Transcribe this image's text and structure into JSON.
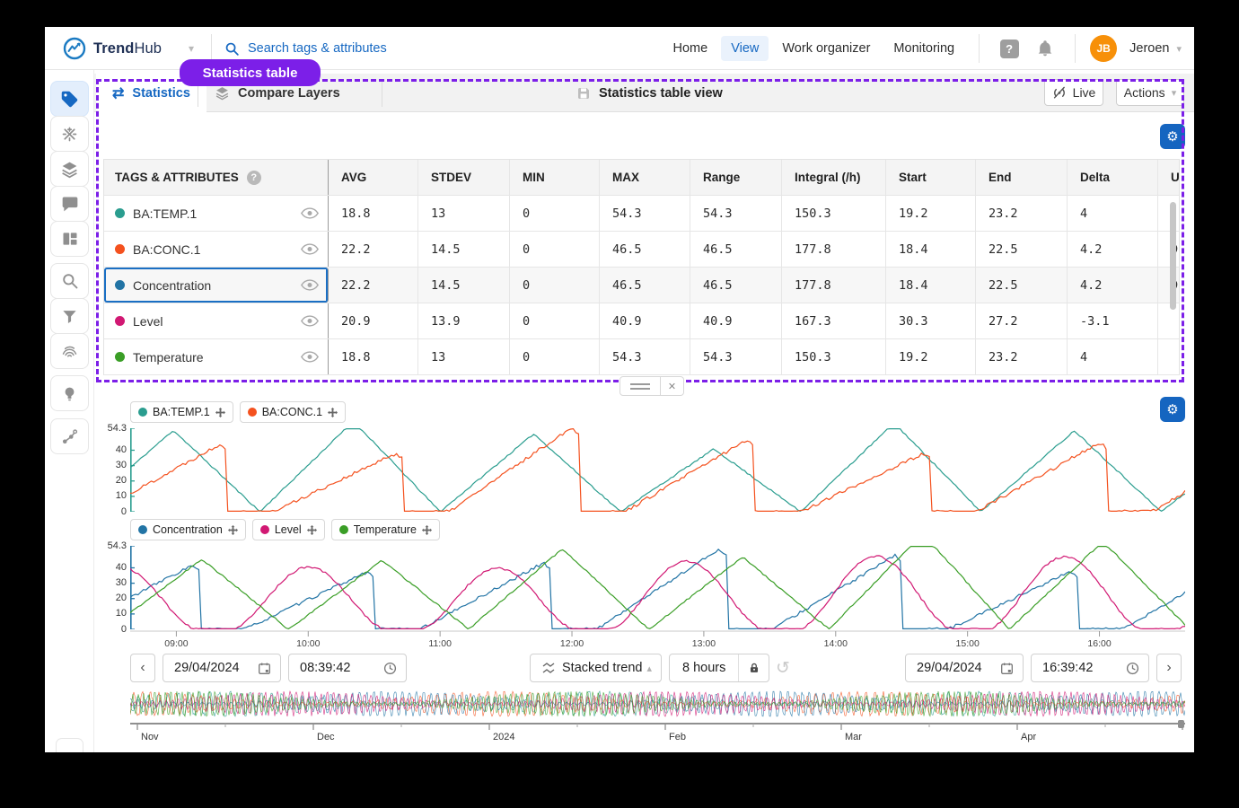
{
  "navbar": {
    "brand_bold": "Trend",
    "brand_light": "Hub",
    "search_placeholder": "Search tags & attributes",
    "nav_items": [
      {
        "label": "Home",
        "active": false
      },
      {
        "label": "View",
        "active": true
      },
      {
        "label": "Work organizer",
        "active": false
      },
      {
        "label": "Monitoring",
        "active": false
      }
    ],
    "user": {
      "initials": "JB",
      "name": "Jeroen"
    }
  },
  "annotation_tooltip": "Statistics table",
  "panel": {
    "tabs": [
      {
        "label": "Statistics",
        "active": true
      },
      {
        "label": "Compare Layers",
        "active": false
      }
    ],
    "view_title": "Statistics table view",
    "live_button": "Live",
    "actions_button": "Actions"
  },
  "table": {
    "columns": [
      "TAGS & ATTRIBUTES",
      "AVG",
      "STDEV",
      "MIN",
      "MAX",
      "Range",
      "Integral (/h)",
      "Start",
      "End",
      "Delta",
      "Un"
    ],
    "rows": [
      {
        "tag": "BA:TEMP.1",
        "color": "#2a9d8f",
        "selected": false,
        "values": [
          "18.8",
          "13",
          "0",
          "54.3",
          "54.3",
          "150.3",
          "19.2",
          "23.2",
          "4",
          ""
        ]
      },
      {
        "tag": "BA:CONC.1",
        "color": "#f4511e",
        "selected": false,
        "values": [
          "22.2",
          "14.5",
          "0",
          "46.5",
          "46.5",
          "177.8",
          "18.4",
          "22.5",
          "4.2",
          "DE"
        ]
      },
      {
        "tag": "Concentration",
        "color": "#2274a5",
        "selected": true,
        "values": [
          "22.2",
          "14.5",
          "0",
          "46.5",
          "46.5",
          "177.8",
          "18.4",
          "22.5",
          "4.2",
          "DE"
        ]
      },
      {
        "tag": "Level",
        "color": "#d11873",
        "selected": false,
        "values": [
          "20.9",
          "13.9",
          "0",
          "40.9",
          "40.9",
          "167.3",
          "30.3",
          "27.2",
          "-3.1",
          ""
        ]
      },
      {
        "tag": "Temperature",
        "color": "#3a9e26",
        "selected": false,
        "values": [
          "18.8",
          "13",
          "0",
          "54.3",
          "54.3",
          "150.3",
          "19.2",
          "23.2",
          "4",
          ""
        ]
      }
    ]
  },
  "chart_data": [
    {
      "type": "line",
      "pane": 1,
      "ylim": [
        0,
        54.3
      ],
      "y_ticks": [
        54.3,
        40,
        30,
        20,
        10,
        0
      ],
      "x_ticks": [
        "09:00",
        "10:00",
        "11:00",
        "12:00",
        "13:00",
        "14:00",
        "15:00",
        "16:00"
      ],
      "x_window": [
        "08:39:42",
        "16:39:42"
      ],
      "axis_color": "#2a9d8f",
      "grid": false,
      "legend_position": "top-left",
      "series": [
        {
          "name": "BA:TEMP.1",
          "color": "#2a9d8f",
          "shape": "triangle",
          "period_min": 82,
          "phase_min": 23,
          "min": 0,
          "max": 50,
          "noise": 0.5,
          "seed": 11
        },
        {
          "name": "BA:CONC.1",
          "color": "#f4511e",
          "shape": "rampdrop",
          "period_min": 80,
          "phase_min": 15,
          "min": 0,
          "max": 46,
          "noise": 1.1,
          "seed": 22
        }
      ]
    },
    {
      "type": "line",
      "pane": 2,
      "ylim": [
        0,
        54.3
      ],
      "y_ticks": [
        54.3,
        40,
        30,
        20,
        10,
        0
      ],
      "x_ticks": [
        "09:00",
        "10:00",
        "11:00",
        "12:00",
        "13:00",
        "14:00",
        "15:00",
        "16:00"
      ],
      "x_window": [
        "08:39:42",
        "16:39:42"
      ],
      "axis_color": "#2274a5",
      "grid": false,
      "legend_position": "top-left",
      "series": [
        {
          "name": "Concentration",
          "color": "#2274a5",
          "shape": "rampdrop",
          "period_min": 80,
          "phase_min": 28,
          "min": 0,
          "max": 44,
          "noise": 1.0,
          "seed": 33
        },
        {
          "name": "Level",
          "color": "#d11873",
          "shape": "bell",
          "period_min": 86,
          "phase_min": 40,
          "min": 0,
          "max": 41,
          "noise": 0.7,
          "seed": 44
        },
        {
          "name": "Temperature",
          "color": "#3a9e26",
          "shape": "triangle",
          "period_min": 82,
          "phase_min": 10,
          "min": 0,
          "max": 52,
          "noise": 0.5,
          "seed": 55
        }
      ]
    }
  ],
  "controls": {
    "start_date": "29/04/2024",
    "start_time": "08:39:42",
    "trend_mode": "Stacked trend",
    "duration": "8 hours",
    "end_date": "29/04/2024",
    "end_time": "16:39:42"
  },
  "minimap": {
    "months": [
      "Nov",
      "Dec",
      "2024",
      "Feb",
      "Mar",
      "Apr"
    ]
  }
}
